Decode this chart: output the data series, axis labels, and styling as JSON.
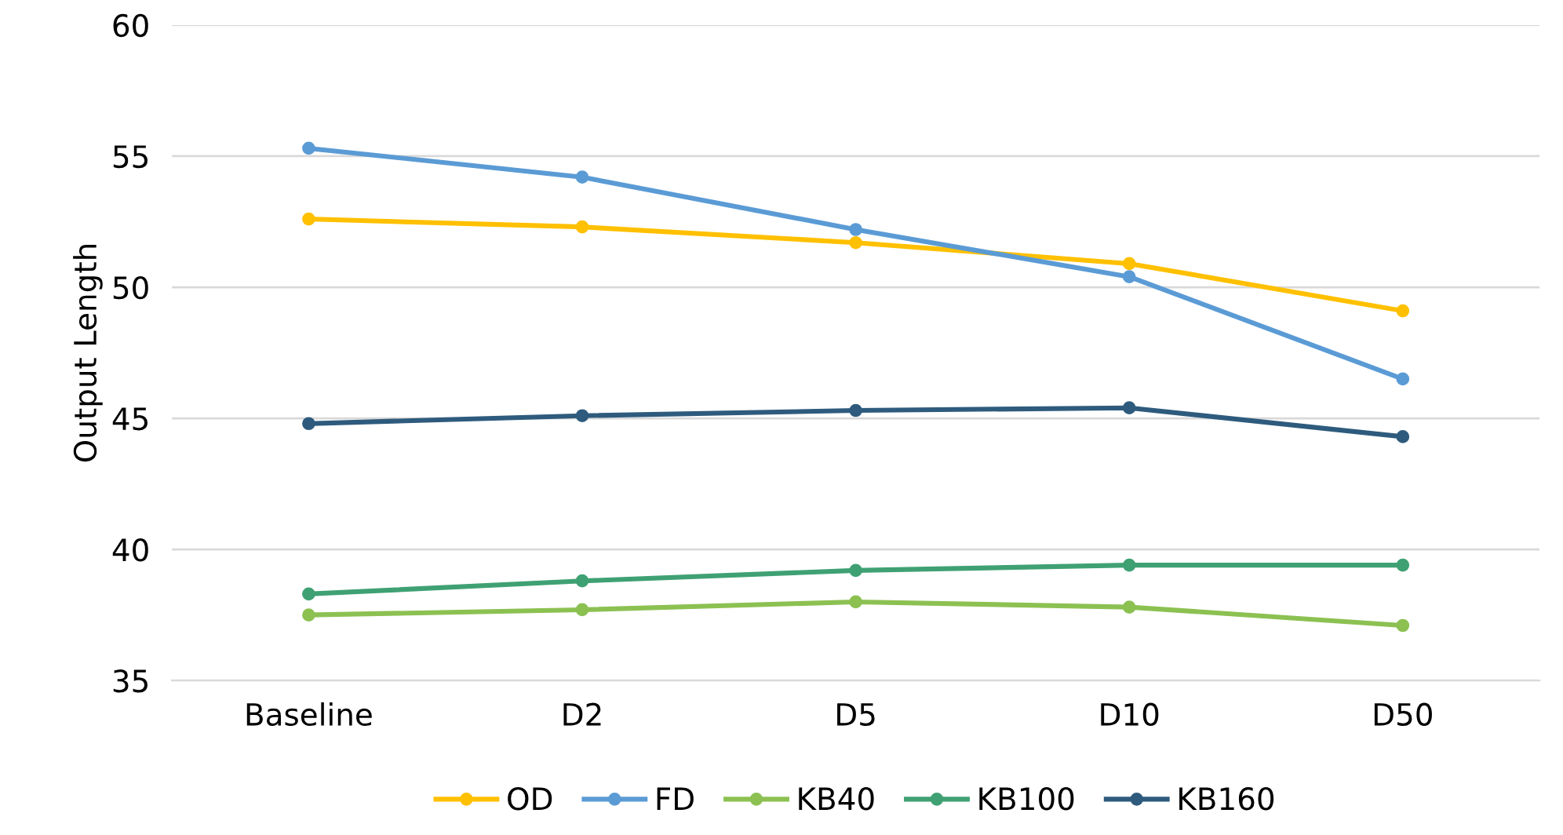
{
  "chart_data": {
    "type": "line",
    "ylabel": "Output Length",
    "categories": [
      "Baseline",
      "D2",
      "D5",
      "D10",
      "D50"
    ],
    "series": [
      {
        "name": "OD",
        "color": "#ffc000",
        "values": [
          52.6,
          52.3,
          51.7,
          50.9,
          49.1
        ]
      },
      {
        "name": "FD",
        "color": "#5b9bd5",
        "values": [
          55.3,
          54.2,
          52.2,
          50.4,
          46.5
        ]
      },
      {
        "name": "KB40",
        "color": "#8cc152",
        "values": [
          37.5,
          37.7,
          38.0,
          37.8,
          37.1
        ]
      },
      {
        "name": "KB100",
        "color": "#3fa173",
        "values": [
          38.3,
          38.8,
          39.2,
          39.4,
          39.4
        ]
      },
      {
        "name": "KB160",
        "color": "#2e5b7d",
        "values": [
          44.8,
          45.1,
          45.3,
          45.4,
          44.3
        ]
      }
    ],
    "ylim": [
      35,
      60
    ],
    "yticks": [
      35,
      40,
      45,
      50,
      55,
      60
    ],
    "grid": "y",
    "legend": "bottom",
    "marker": "circle",
    "line_style": "solid"
  }
}
